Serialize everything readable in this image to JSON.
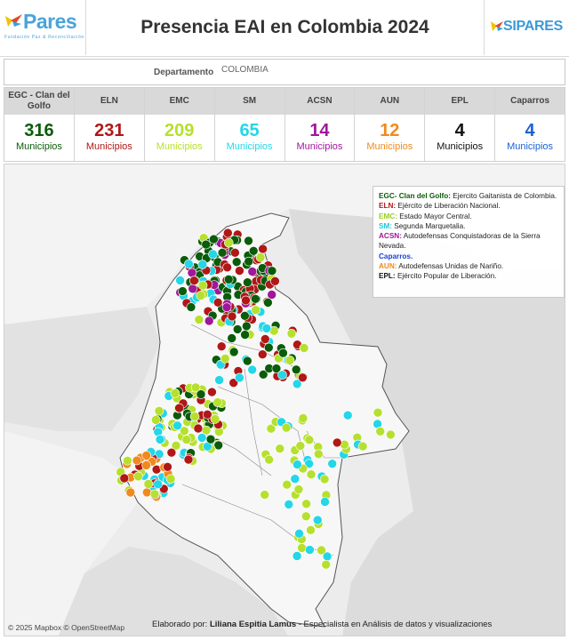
{
  "header": {
    "title": "Presencia EAI en Colombia 2024",
    "logo_left": {
      "word": "Pares",
      "tagline": "Fundación Paz & Reconciliación",
      "icon": "bird-icon",
      "color": "#4aa3d9"
    },
    "logo_right": {
      "word": "SIPARES",
      "icon": "dove-icon",
      "color": "#3a9ad9"
    }
  },
  "filter": {
    "label": "Departamento",
    "value": "COLOMBIA"
  },
  "kpis": [
    {
      "header": "EGC - Clan del Golfo",
      "value": "316",
      "unit": "Municipios",
      "color": "#0a5c0a"
    },
    {
      "header": "ELN",
      "value": "231",
      "unit": "Municipios",
      "color": "#b01717"
    },
    {
      "header": "EMC",
      "value": "209",
      "unit": "Municipios",
      "color": "#b6e02d"
    },
    {
      "header": "SM",
      "value": "65",
      "unit": "Municipios",
      "color": "#23d6e8"
    },
    {
      "header": "ACSN",
      "value": "14",
      "unit": "Municipios",
      "color": "#a0179b"
    },
    {
      "header": "AUN",
      "value": "12",
      "unit": "Municipios",
      "color": "#f08a1c"
    },
    {
      "header": "EPL",
      "value": "4",
      "unit": "Municipios",
      "color": "#111111"
    },
    {
      "header": "Caparros",
      "value": "4",
      "unit": "Municipios",
      "color": "#1a63d6"
    }
  ],
  "legend": {
    "items": [
      {
        "code": "EGC- Clan del Golfo:",
        "text": "Ejercito Gaitanista de Colombia.",
        "color": "#0a5c0a"
      },
      {
        "code": "ELN:",
        "text": "Ejército de Liberación Nacional.",
        "color": "#b01717"
      },
      {
        "code": "EMC:",
        "text": "Estado Mayor Central.",
        "color": "#9ccc1f"
      },
      {
        "code": "SM:",
        "text": "Segunda Marquetalia.",
        "color": "#1fc6d8"
      },
      {
        "code": "ACSN:",
        "text": "Autodefensas Conquistadoras de la Sierra Nevada.",
        "color": "#a0179b"
      },
      {
        "code": "Caparros.",
        "text": "",
        "color": "#1a3fd6"
      },
      {
        "code": "AUN:",
        "text": "Autodefensas Unidas de Nariño.",
        "color": "#f08a1c"
      },
      {
        "code": "EPL:",
        "text": "Ejército Popular de Liberación.",
        "color": "#111111"
      }
    ]
  },
  "map": {
    "credit": "© 2025 Mapbox © OpenStreetMap",
    "author_prefix": "Elaborado por:",
    "author_name": "Liliana Espitia Lamus",
    "author_suffix": "- Especialista en Análisis de datos y visualizaciones"
  }
}
